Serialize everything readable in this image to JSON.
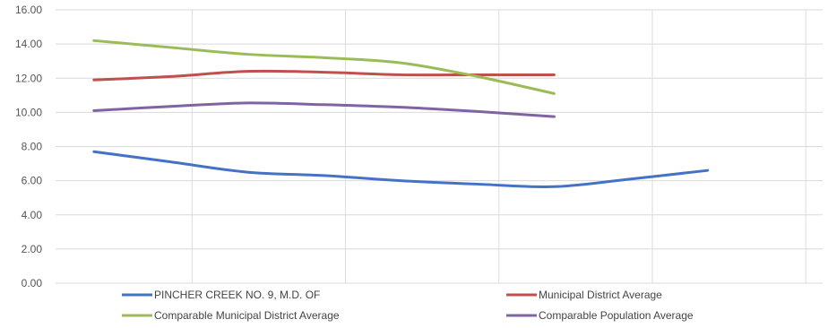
{
  "chart_data": {
    "type": "line",
    "x": [
      1,
      2,
      3,
      4,
      5,
      6,
      7,
      8,
      9,
      10
    ],
    "ylim": [
      0,
      16
    ],
    "yticks": [
      "0.00",
      "2.00",
      "4.00",
      "6.00",
      "8.00",
      "10.00",
      "12.00",
      "14.00",
      "16.00"
    ],
    "grid": true,
    "legend_position": "bottom",
    "series": [
      {
        "name": "PINCHER CREEK NO. 9, M.D. OF",
        "color": "#4472c4",
        "values": [
          7.7,
          7.1,
          6.5,
          6.3,
          6.0,
          5.8,
          5.65,
          6.1,
          6.6,
          null
        ]
      },
      {
        "name": "Municipal District Average",
        "color": "#c0504d",
        "values": [
          11.9,
          12.1,
          12.4,
          12.35,
          12.2,
          12.2,
          12.2,
          null,
          null,
          null
        ]
      },
      {
        "name": "Comparable Municipal District Average",
        "color": "#9bbb59",
        "values": [
          14.2,
          13.8,
          13.4,
          13.2,
          12.9,
          12.1,
          11.1,
          null,
          null,
          null
        ]
      },
      {
        "name": "Comparable Population Average",
        "color": "#8064a2",
        "values": [
          10.1,
          10.35,
          10.55,
          10.45,
          10.3,
          10.05,
          9.75,
          null,
          null,
          null
        ]
      }
    ]
  }
}
